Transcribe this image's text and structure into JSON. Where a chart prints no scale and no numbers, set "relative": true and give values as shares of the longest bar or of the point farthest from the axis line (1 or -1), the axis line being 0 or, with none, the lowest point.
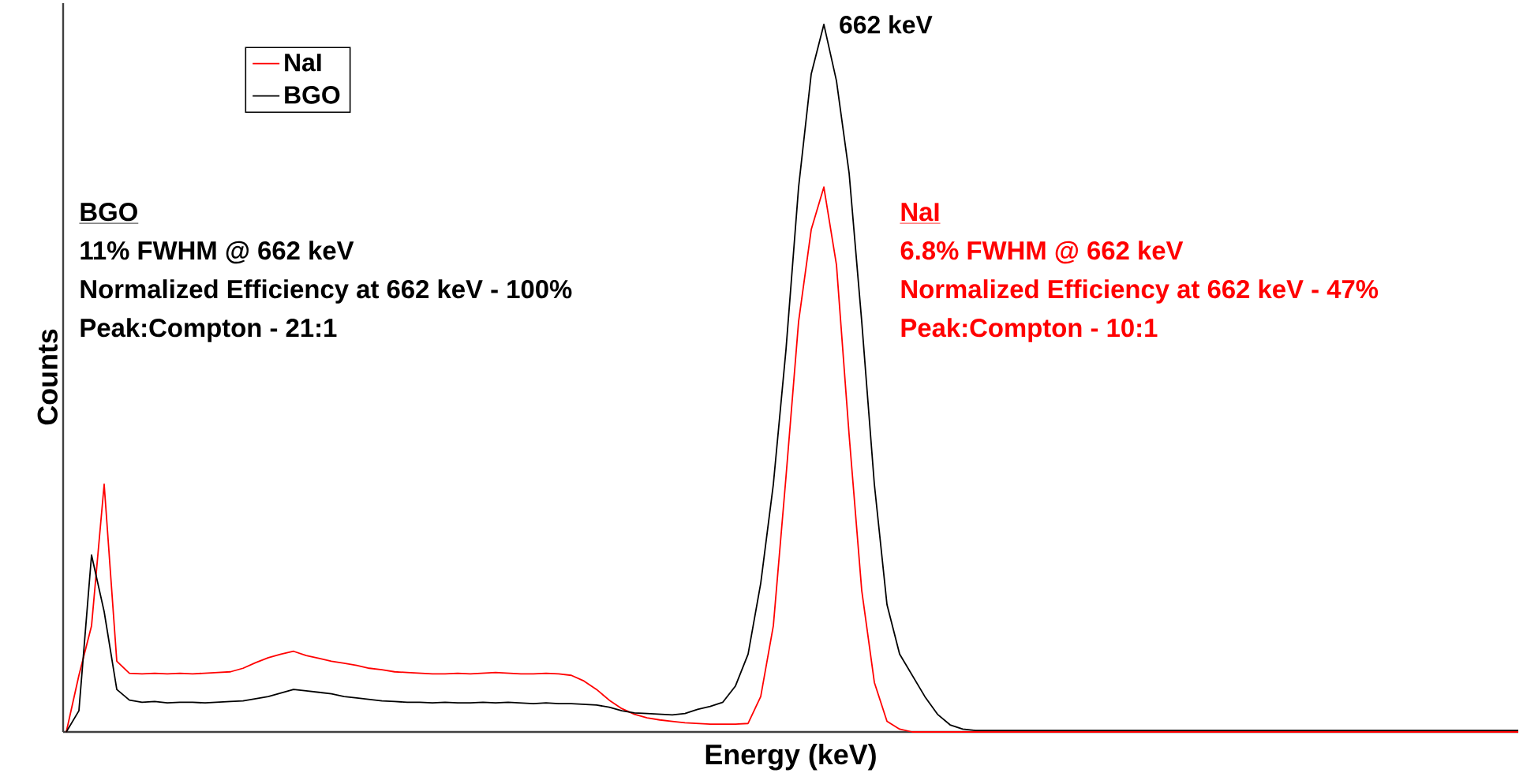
{
  "chart_data": {
    "type": "line",
    "relative": true,
    "xlabel": "Energy (keV)",
    "ylabel": "Counts",
    "legend": "top left",
    "marker": "none",
    "line_style": "solid",
    "categories": [
      null,
      null,
      null,
      null,
      null,
      null,
      null,
      null,
      null,
      null,
      null,
      null,
      null,
      null,
      null,
      null,
      null,
      null,
      null,
      null,
      null,
      null,
      null,
      null,
      null,
      null,
      null,
      null,
      null,
      null,
      null,
      null,
      null,
      null,
      null,
      null,
      null,
      null,
      null,
      null,
      null,
      null,
      null,
      null,
      null,
      null,
      null,
      null,
      null,
      null,
      null,
      null,
      null,
      null,
      null,
      null,
      null,
      null,
      null,
      null,
      null,
      null,
      null,
      null,
      null,
      null,
      null,
      null,
      null,
      null,
      null,
      null,
      null,
      null,
      null,
      null,
      null,
      null,
      null,
      null,
      null,
      null,
      null,
      null,
      null,
      null,
      null,
      null,
      null,
      null,
      null,
      null,
      null,
      null,
      null,
      null,
      null,
      null,
      null,
      null,
      null,
      null,
      null,
      null,
      null,
      null,
      null,
      null,
      null,
      null,
      null,
      null,
      null,
      null,
      null,
      null
    ],
    "series": [
      {
        "name": "NaI",
        "color": "#ff0000",
        "values": [
          0,
          0.08,
          0.15,
          0.35,
          0.1,
          0.083,
          0.082,
          0.083,
          0.082,
          0.083,
          0.082,
          0.083,
          0.084,
          0.085,
          0.09,
          0.098,
          0.105,
          0.11,
          0.114,
          0.108,
          0.104,
          0.1,
          0.097,
          0.094,
          0.09,
          0.088,
          0.085,
          0.084,
          0.083,
          0.082,
          0.082,
          0.083,
          0.082,
          0.083,
          0.084,
          0.083,
          0.082,
          0.082,
          0.083,
          0.082,
          0.08,
          0.072,
          0.06,
          0.045,
          0.033,
          0.025,
          0.02,
          0.017,
          0.015,
          0.013,
          0.012,
          0.011,
          0.011,
          0.011,
          0.012,
          0.05,
          0.15,
          0.36,
          0.58,
          0.71,
          0.77,
          0.66,
          0.42,
          0.2,
          0.07,
          0.015,
          0.004,
          0,
          0,
          0,
          0,
          0,
          0,
          0,
          0,
          0,
          0,
          0,
          0,
          0,
          0,
          0,
          0,
          0,
          0,
          0,
          0,
          0,
          0,
          0,
          0,
          0,
          0,
          0,
          0,
          0,
          0,
          0,
          0,
          0,
          0,
          0,
          0,
          0,
          0,
          0,
          0,
          0,
          0,
          0,
          0,
          0,
          0,
          0,
          0,
          0
        ]
      },
      {
        "name": "BGO",
        "color": "#000000",
        "values": [
          0,
          0.03,
          0.25,
          0.17,
          0.06,
          0.045,
          0.042,
          0.043,
          0.041,
          0.042,
          0.042,
          0.041,
          0.042,
          0.043,
          0.044,
          0.047,
          0.05,
          0.055,
          0.06,
          0.058,
          0.056,
          0.054,
          0.05,
          0.048,
          0.046,
          0.044,
          0.043,
          0.042,
          0.042,
          0.041,
          0.042,
          0.041,
          0.041,
          0.042,
          0.041,
          0.042,
          0.041,
          0.04,
          0.041,
          0.04,
          0.04,
          0.039,
          0.038,
          0.035,
          0.03,
          0.027,
          0.026,
          0.025,
          0.024,
          0.026,
          0.032,
          0.036,
          0.042,
          0.065,
          0.11,
          0.21,
          0.35,
          0.54,
          0.77,
          0.93,
          1.0,
          0.92,
          0.79,
          0.58,
          0.35,
          0.18,
          0.11,
          0.08,
          0.05,
          0.025,
          0.01,
          0.004,
          0.002,
          0.002,
          0.002,
          0.002,
          0.002,
          0.002,
          0.002,
          0.002,
          0.002,
          0.002,
          0.002,
          0.002,
          0.002,
          0.002,
          0.002,
          0.002,
          0.002,
          0.002,
          0.002,
          0.002,
          0.002,
          0.002,
          0.002,
          0.002,
          0.002,
          0.002,
          0.002,
          0.002,
          0.002,
          0.002,
          0.002,
          0.002,
          0.002,
          0.002,
          0.002,
          0.002,
          0.002,
          0.002,
          0.002,
          0.002,
          0.002,
          0.002,
          0.002,
          0.002
        ]
      }
    ],
    "annotations": [
      "662 keV",
      "BGO",
      "11% FWHM @ 662 keV",
      "Normalized Efficiency at 662 keV - 100%",
      "Peak:Compton - 21:1",
      "NaI",
      "6.8% FWHM @ 662 keV",
      "Normalized Efficiency at 662 keV - 47%",
      "Peak:Compton - 10:1"
    ]
  }
}
